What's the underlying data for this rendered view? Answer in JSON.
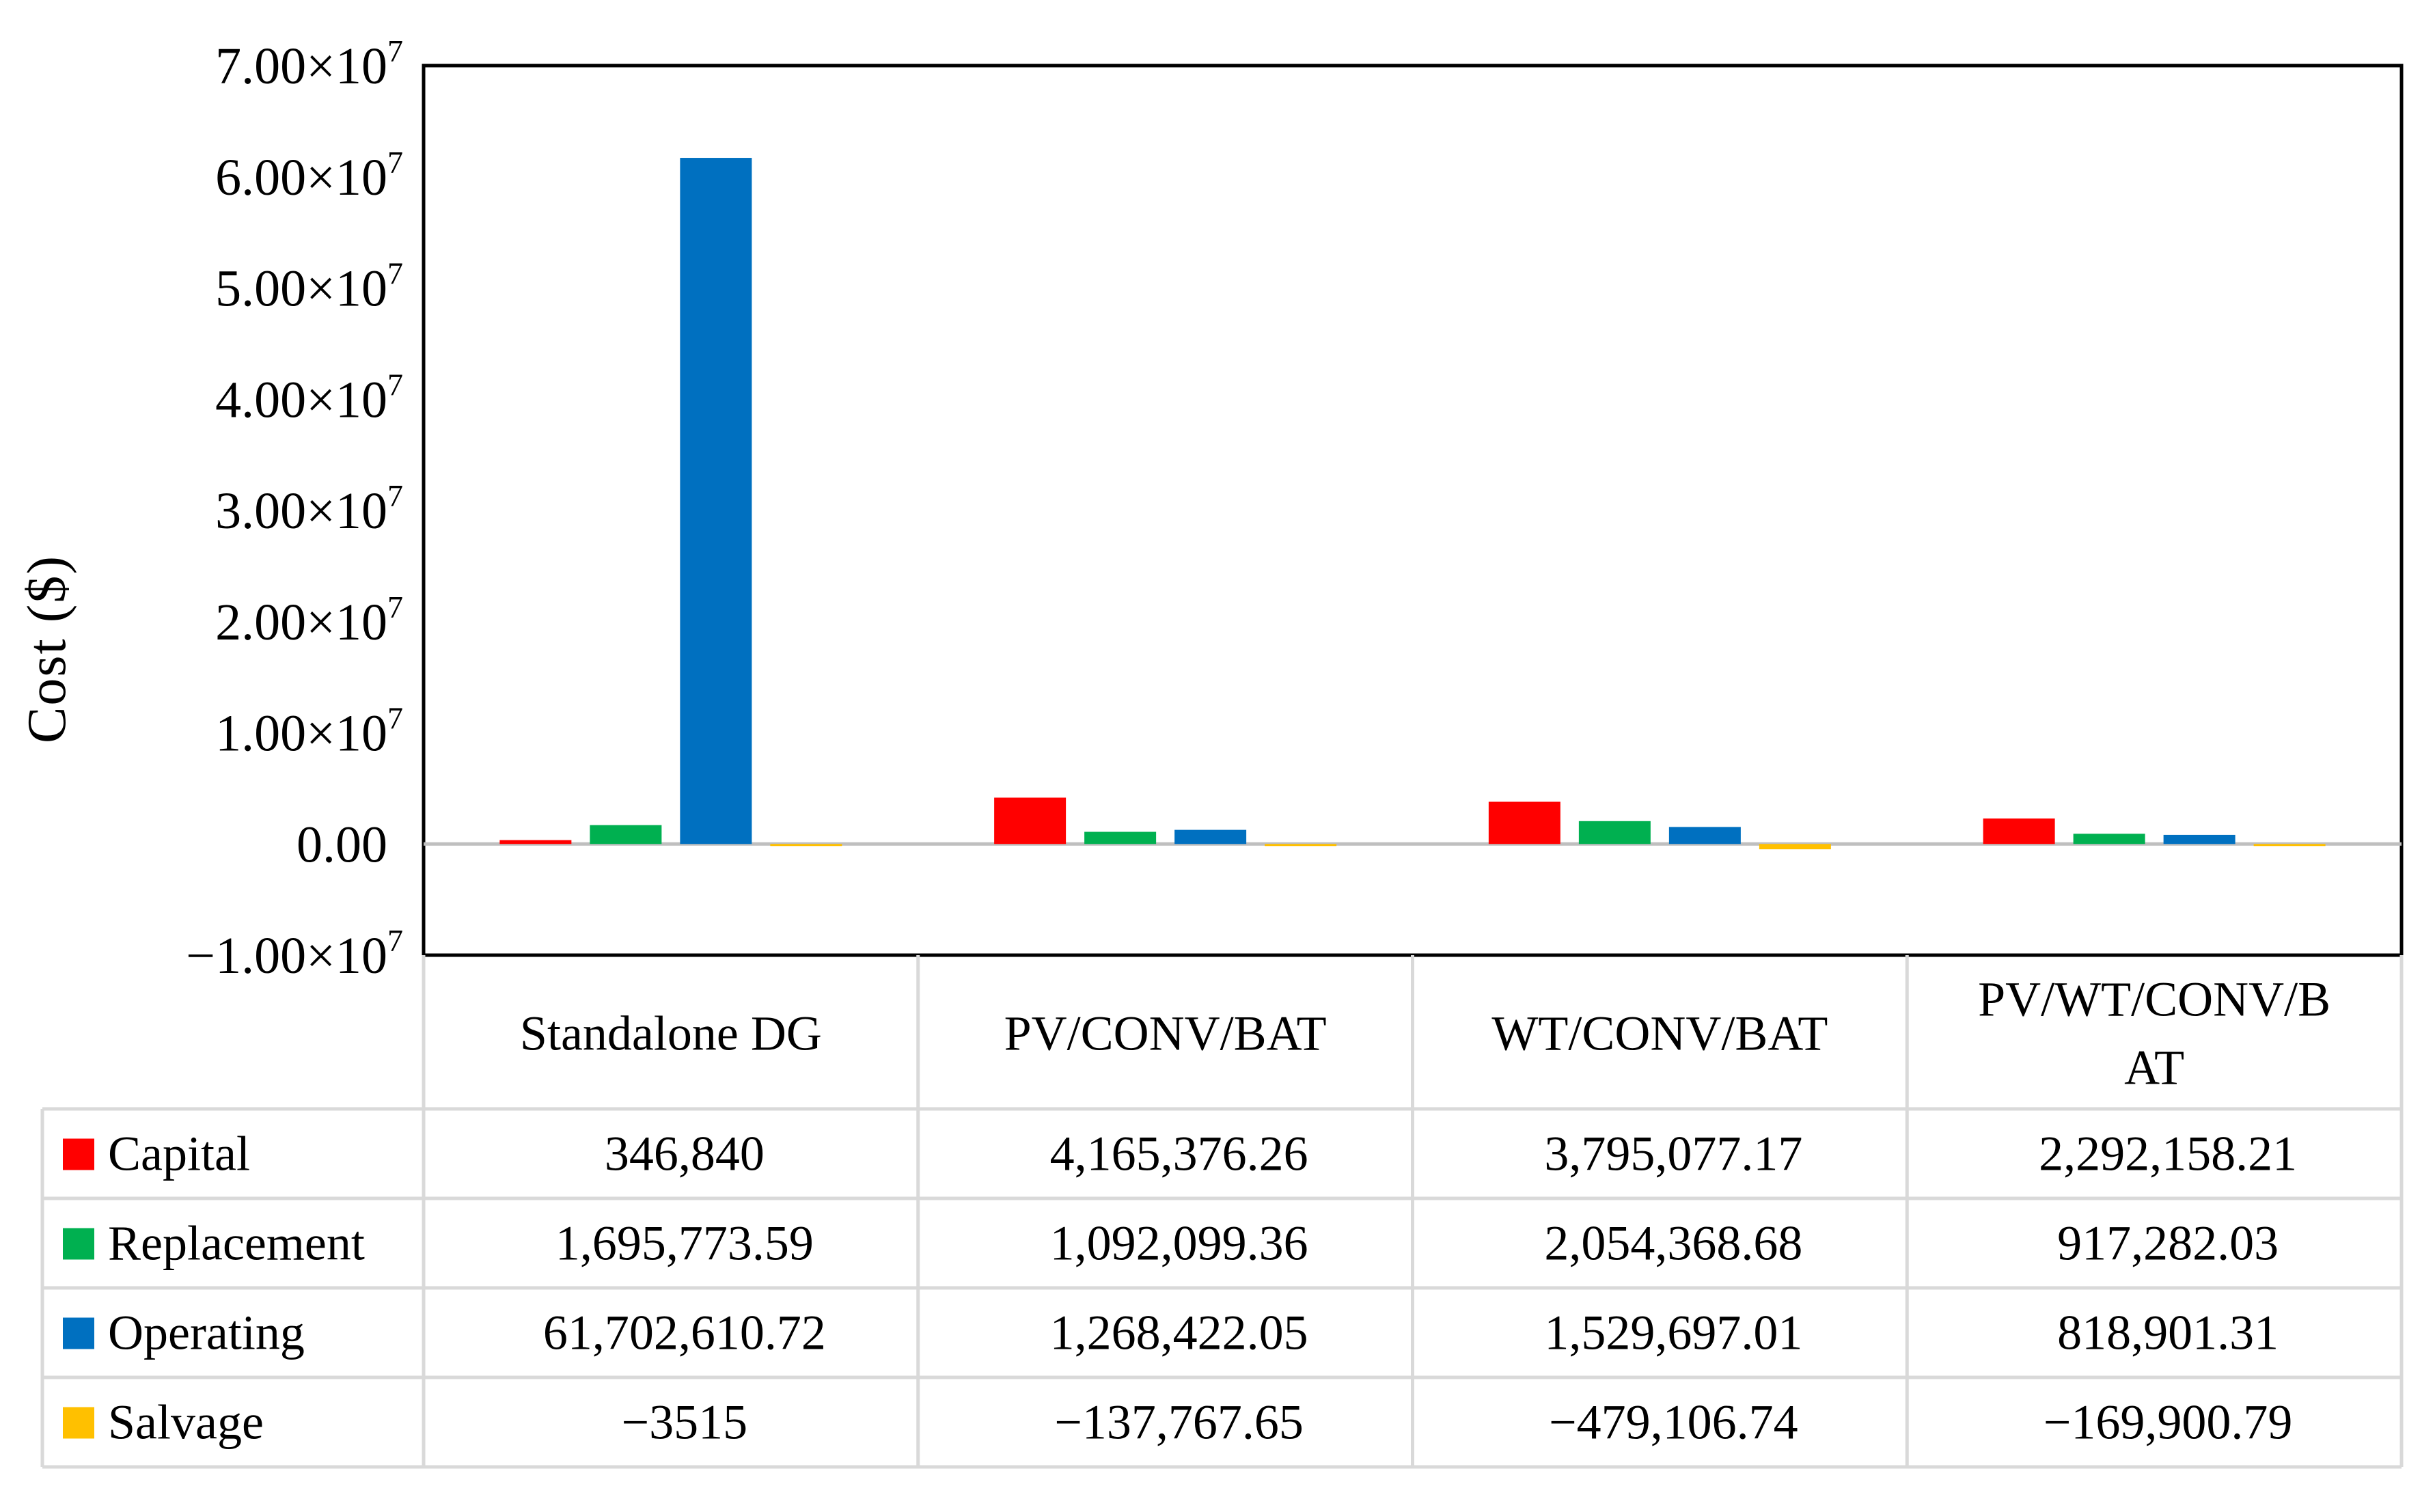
{
  "chart_data": {
    "type": "bar",
    "title": "",
    "ylabel": "Cost ($)",
    "xlabel": "",
    "ylim": [
      -10000000,
      70000000
    ],
    "ytick_step": 10000000,
    "ytick_labels": [
      "−1.00×10",
      "0.00",
      "1.00×10",
      "2.00×10",
      "3.00×10",
      "4.00×10",
      "5.00×10",
      "6.00×10",
      "7.00×10"
    ],
    "ytick_exponent": "7",
    "categories": [
      "Standalone DG",
      "PV/CONV/BAT",
      "WT/CONV/BAT",
      "PV/WT/CONV/BAT"
    ],
    "category_label_lines": [
      [
        "Standalone DG"
      ],
      [
        "PV/CONV/BAT"
      ],
      [
        "WT/CONV/BAT"
      ],
      [
        "PV/WT/CONV/B",
        "AT"
      ]
    ],
    "legend_placement": "data-table",
    "grid": false,
    "series": [
      {
        "name": "Capital",
        "color": "#ff0000",
        "values": [
          346840,
          4165376.26,
          3795077.17,
          2292158.21
        ],
        "labels": [
          "346,840",
          "4,165,376.26",
          "3,795,077.17",
          "2,292,158.21"
        ]
      },
      {
        "name": "Replacement",
        "color": "#00b050",
        "values": [
          1695773.59,
          1092099.36,
          2054368.68,
          917282.03
        ],
        "labels": [
          "1,695,773.59",
          "1,092,099.36",
          "2,054,368.68",
          "917,282.03"
        ]
      },
      {
        "name": "Operating",
        "color": "#0070c0",
        "values": [
          61702610.72,
          1268422.05,
          1529697.01,
          818901.31
        ],
        "labels": [
          "61,702,610.72",
          "1,268,422.05",
          "1,529,697.01",
          "818,901.31"
        ]
      },
      {
        "name": "Salvage",
        "color": "#ffc000",
        "values": [
          -3515,
          -137767.65,
          -479106.74,
          -169900.79
        ],
        "labels": [
          "−3515",
          "−137,767.65",
          "−479,106.74",
          "−169,900.79"
        ]
      }
    ]
  }
}
